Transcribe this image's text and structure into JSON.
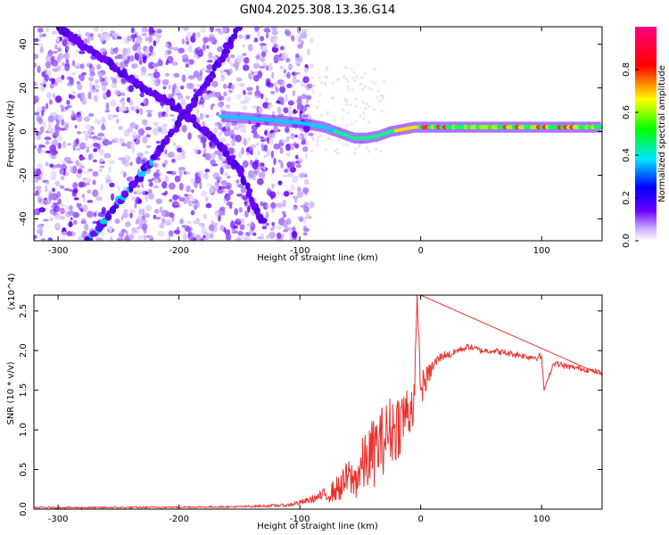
{
  "figure": {
    "title": "GN04.2025.308.13.36.G14"
  },
  "chart_data": [
    {
      "type": "heatmap",
      "title": "GN04.2025.308.13.36.G14",
      "xlabel": "Height of straight line (km)",
      "ylabel": "Frequency (Hz)",
      "xlim": [
        -320,
        150
      ],
      "ylim": [
        -50,
        48
      ],
      "xticks": [
        -300,
        -200,
        -100,
        0,
        100
      ],
      "yticks": [
        -40,
        -20,
        0,
        20,
        40
      ],
      "xtick_labels": [
        "-300",
        "-200",
        "-100",
        "0",
        "100"
      ],
      "ytick_labels": [
        "-40",
        "-20",
        "0",
        "20",
        "40"
      ],
      "colorbar": {
        "label": "Normalized spectral amplitude",
        "range": [
          0,
          1
        ],
        "ticks": [
          0.0,
          0.2,
          0.4,
          0.6,
          0.8
        ],
        "tick_labels": [
          "0.0",
          "0.2",
          "0.4",
          "0.6",
          "0.8"
        ],
        "colormap": [
          "#ffffff",
          "#6a00ff",
          "#0000ff",
          "#00e5ff",
          "#00ff00",
          "#ffff00",
          "#ff0000",
          "#ff00a0"
        ]
      },
      "ridges": [
        {
          "name": "main doppler trace",
          "x": [
            -165,
            -140,
            -120,
            -100,
            -80,
            -65,
            -55,
            -45,
            -35,
            -25,
            -15,
            -5,
            0,
            50,
            100,
            150
          ],
          "y": [
            7,
            6,
            5,
            4,
            2,
            -1,
            -3,
            -3,
            -2,
            0,
            1,
            2,
            2,
            2,
            2,
            2
          ]
        },
        {
          "name": "rising feature",
          "x": [
            -275,
            -255,
            -235,
            -215,
            -195,
            -175,
            -160,
            -150
          ],
          "y": [
            -50,
            -36,
            -22,
            -8,
            8,
            24,
            38,
            48
          ]
        },
        {
          "name": "falling feature",
          "x": [
            -300,
            -270,
            -250,
            -230,
            -210,
            -190,
            -170,
            -150,
            -130
          ],
          "y": [
            48,
            36,
            28,
            20,
            14,
            6,
            -4,
            -18,
            -42
          ]
        }
      ]
    },
    {
      "type": "line",
      "xlabel": "Height of straight line (km)",
      "ylabel": "SNR (10 * v/v)",
      "y_multiplier": "(x10^4)",
      "xlim": [
        -320,
        150
      ],
      "ylim": [
        0,
        2.7
      ],
      "xticks": [
        -300,
        -200,
        -100,
        0,
        100
      ],
      "yticks": [
        0.0,
        0.5,
        1.0,
        1.5,
        2.0,
        2.5
      ],
      "xtick_labels": [
        "-300",
        "-200",
        "-100",
        "0",
        "100"
      ],
      "ytick_labels": [
        "0.0",
        "0.5",
        "1.0",
        "1.5",
        "2.0",
        "2.5"
      ],
      "series": [
        {
          "name": "SNR",
          "color": "#e8322e",
          "x": [
            -320,
            -250,
            -150,
            -110,
            -95,
            -85,
            -75,
            -65,
            -60,
            -55,
            -50,
            -45,
            -40,
            -35,
            -30,
            -25,
            -20,
            -15,
            -10,
            -5,
            -3,
            0,
            5,
            10,
            15,
            20,
            25,
            30,
            40,
            50,
            60,
            70,
            80,
            90,
            100,
            102,
            110,
            120,
            130,
            140,
            150
          ],
          "y": [
            0.02,
            0.02,
            0.03,
            0.05,
            0.1,
            0.15,
            0.2,
            0.3,
            0.4,
            0.35,
            0.5,
            0.6,
            0.7,
            0.8,
            0.9,
            1.0,
            1.05,
            1.15,
            1.25,
            1.4,
            2.7,
            1.5,
            1.65,
            1.8,
            1.9,
            1.95,
            1.95,
            2.0,
            2.05,
            2.0,
            2.0,
            1.97,
            1.95,
            1.92,
            1.92,
            1.5,
            1.85,
            1.8,
            1.78,
            1.75,
            1.72
          ],
          "noise": [
            0.01,
            0.01,
            0.01,
            0.02,
            0.04,
            0.06,
            0.12,
            0.2,
            0.25,
            0.25,
            0.35,
            0.4,
            0.45,
            0.45,
            0.45,
            0.45,
            0.45,
            0.4,
            0.4,
            0.35,
            0.0,
            0.25,
            0.15,
            0.1,
            0.07,
            0.05,
            0.05,
            0.04,
            0.04,
            0.04,
            0.04,
            0.04,
            0.04,
            0.04,
            0.05,
            0.0,
            0.04,
            0.04,
            0.03,
            0.03,
            0.03
          ]
        }
      ]
    }
  ]
}
